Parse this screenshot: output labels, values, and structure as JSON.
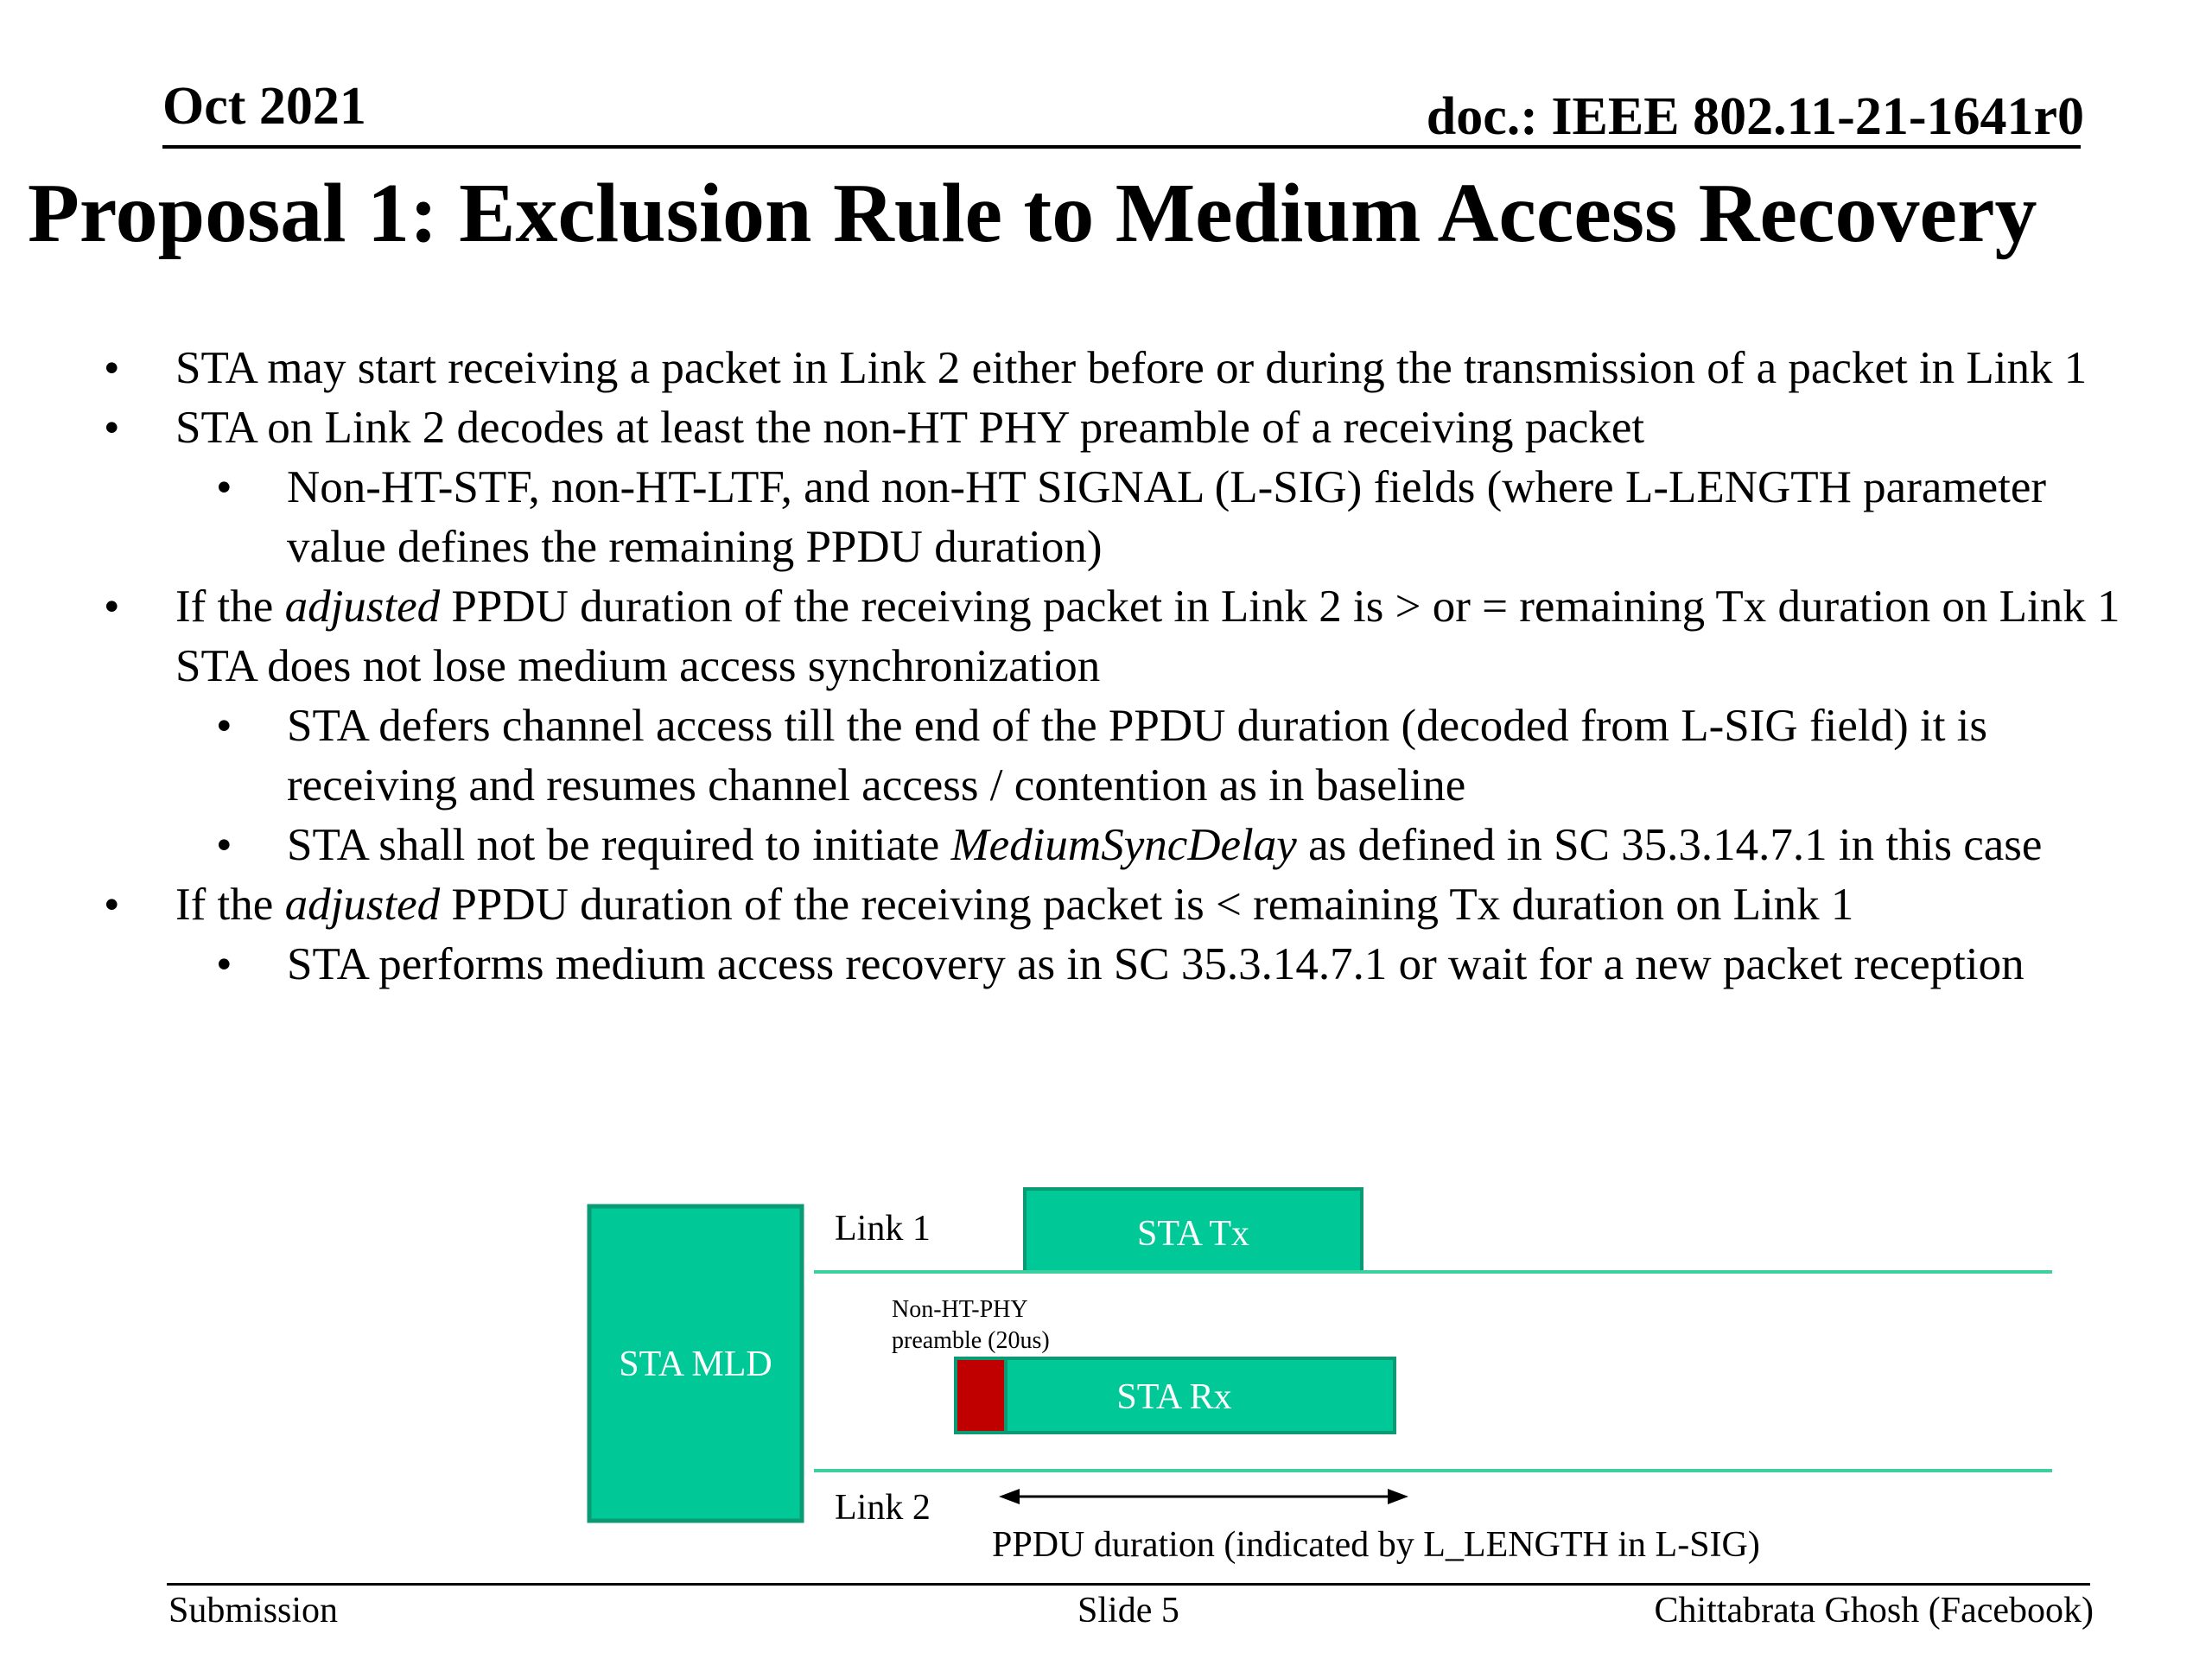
{
  "header": {
    "date": "Oct 2021",
    "doc_id": "doc.: IEEE 802.11-21-1641r0"
  },
  "title": "Proposal 1: Exclusion Rule to Medium Access Recovery",
  "bullets": [
    {
      "level": 1,
      "parts": [
        {
          "t": "STA may start receiving a packet in Link 2 either before or during the transmission of a packet in Link 1"
        }
      ]
    },
    {
      "level": 1,
      "parts": [
        {
          "t": "STA on Link 2 decodes at least the non-HT PHY preamble of a receiving packet"
        }
      ]
    },
    {
      "level": 2,
      "parts": [
        {
          "t": "Non-HT-STF, non-HT-LTF, and non-HT SIGNAL (L-SIG) fields (where L-LENGTH parameter value defines the remaining PPDU duration)"
        }
      ]
    },
    {
      "level": 1,
      "parts": [
        {
          "t": "If the "
        },
        {
          "t": "adjusted",
          "i": true
        },
        {
          "t": " PPDU duration of the receiving packet in Link 2 is > or = remaining Tx duration on Link 1 STA does not lose medium access synchronization"
        }
      ]
    },
    {
      "level": 2,
      "parts": [
        {
          "t": "STA defers channel access till the end of the PPDU duration (decoded from L-SIG field) it is receiving and resumes channel access / contention as in baseline"
        }
      ]
    },
    {
      "level": 2,
      "parts": [
        {
          "t": "STA shall not be required to initiate "
        },
        {
          "t": "MediumSyncDelay",
          "i": true
        },
        {
          "t": " as defined in SC 35.3.14.7.1 in this case"
        }
      ]
    },
    {
      "level": 1,
      "parts": [
        {
          "t": "If the "
        },
        {
          "t": "adjusted",
          "i": true
        },
        {
          "t": " PPDU duration of the receiving packet is < remaining Tx duration on Link 1"
        }
      ]
    },
    {
      "level": 2,
      "parts": [
        {
          "t": "STA performs medium access recovery as in SC 35.3.14.7.1 or wait for a new packet reception"
        }
      ]
    }
  ],
  "bullet_glyph": "•",
  "diagram": {
    "sta_mld": "STA MLD",
    "link1": "Link 1",
    "link2": "Link 2",
    "sta_tx": "STA Tx",
    "sta_rx": "STA Rx",
    "preamble_line1": "Non-HT-PHY",
    "preamble_line2": "preamble (20us)",
    "ppdu_label": "PPDU duration (indicated by L_LENGTH in L-SIG)",
    "box_color": "#00c896",
    "box_border": "#0a9a74",
    "preamble_color": "#c00000",
    "line_color": "#3ecfa0"
  },
  "footer": {
    "left": "Submission",
    "center": "Slide 5",
    "right": "Chittabrata Ghosh (Facebook)"
  }
}
